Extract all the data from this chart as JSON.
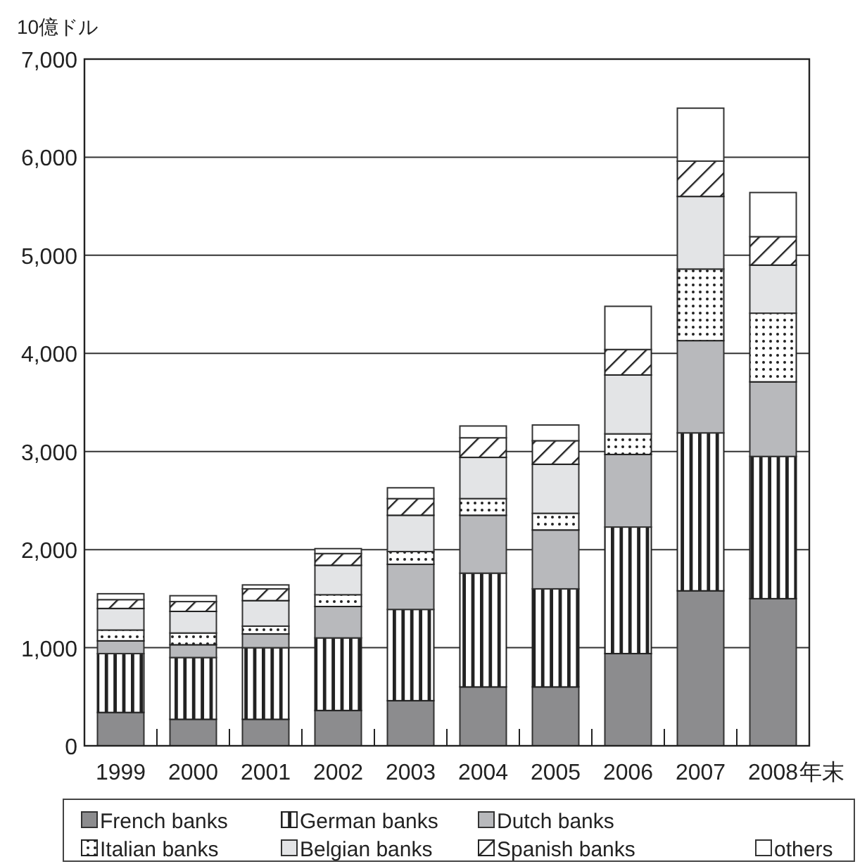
{
  "chart_data": {
    "type": "bar",
    "stacked": true,
    "ylabel": "10億ドル",
    "xlabel": "年末",
    "categories": [
      "1999",
      "2000",
      "2001",
      "2002",
      "2003",
      "2004",
      "2005",
      "2006",
      "2007",
      "2008"
    ],
    "series": [
      {
        "name": "French banks",
        "color": "#8c8c8e",
        "values": [
          340,
          270,
          270,
          360,
          460,
          600,
          600,
          940,
          1580,
          1500
        ]
      },
      {
        "name": "German banks",
        "color": "#222222",
        "values": [
          600,
          630,
          730,
          740,
          930,
          1160,
          1000,
          1290,
          1610,
          1450
        ]
      },
      {
        "name": "Dutch banks",
        "color": "#b8b9bc",
        "values": [
          130,
          130,
          140,
          320,
          460,
          590,
          600,
          740,
          940,
          760
        ]
      },
      {
        "name": "Italian banks",
        "color": "#222222",
        "values": [
          110,
          120,
          80,
          120,
          130,
          170,
          170,
          210,
          730,
          700
        ]
      },
      {
        "name": "Belgian banks",
        "color": "#e3e4e6",
        "values": [
          220,
          220,
          260,
          300,
          370,
          420,
          500,
          600,
          740,
          490
        ]
      },
      {
        "name": "Spanish banks",
        "color": "#222222",
        "values": [
          90,
          100,
          120,
          120,
          170,
          200,
          240,
          260,
          360,
          290
        ]
      },
      {
        "name": "others",
        "color": "#ffffff",
        "values": [
          60,
          60,
          40,
          50,
          110,
          120,
          160,
          440,
          540,
          450
        ]
      }
    ],
    "ylim": [
      0,
      7000
    ],
    "yticks": [
      0,
      {
        "value": 1000,
        "label": "1,000"
      },
      {
        "value": 2000,
        "label": "2,000"
      },
      {
        "value": 3000,
        "label": "3,000"
      },
      {
        "value": 4000,
        "label": "4,000"
      },
      {
        "value": 5000,
        "label": "5,000"
      },
      {
        "value": 6000,
        "label": "6,000"
      },
      {
        "value": 7000,
        "label": "7,000"
      }
    ],
    "grid": "y",
    "legend": "bottom"
  }
}
